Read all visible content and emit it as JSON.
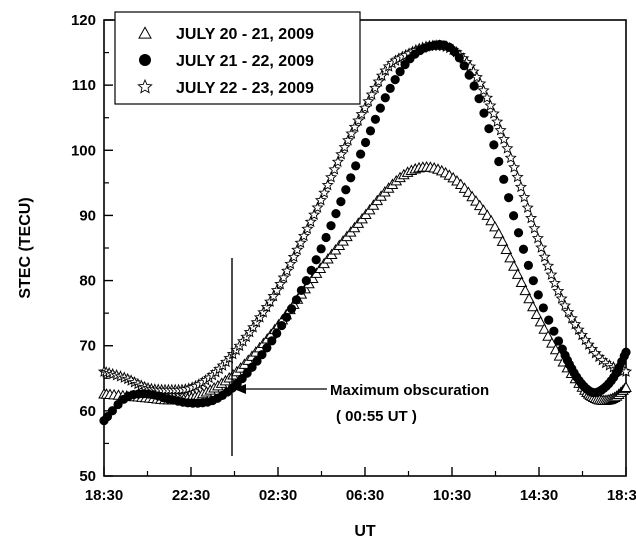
{
  "chart_data": {
    "type": "scatter",
    "xlabel": "UT",
    "ylabel": "STEC (TECU)",
    "xlim": [
      "18:30",
      "18:30"
    ],
    "ylim": [
      50,
      120
    ],
    "x_ticks": [
      "18:30",
      "22:30",
      "02:30",
      "06:30",
      "10:30",
      "14:30",
      "18:30"
    ],
    "y_ticks": [
      50,
      60,
      70,
      80,
      90,
      100,
      110,
      120
    ],
    "grid": false,
    "legend_position": "top-left",
    "series": [
      {
        "name": "JULY 20 - 21, 2009",
        "marker": "open-triangle",
        "x": [
          "18:30",
          "19:30",
          "20:30",
          "21:30",
          "22:30",
          "23:30",
          "00:30",
          "01:30",
          "02:30",
          "03:30",
          "04:30",
          "05:30",
          "06:30",
          "07:30",
          "08:30",
          "09:30",
          "10:30",
          "11:30",
          "12:30",
          "13:30",
          "14:30",
          "15:30",
          "16:30",
          "17:00",
          "17:30",
          "18:00",
          "18:30"
        ],
        "y": [
          62.5,
          62.2,
          61.9,
          61.6,
          61.9,
          63.3,
          65.6,
          69.0,
          73.0,
          77.5,
          82.0,
          86.0,
          89.9,
          93.8,
          96.6,
          97.3,
          95.8,
          92.5,
          88.0,
          81.0,
          74.0,
          68.0,
          63.5,
          62.0,
          61.5,
          62.0,
          63.5
        ]
      },
      {
        "name": "JULY 21 - 22, 2009",
        "marker": "filled-circle",
        "x": [
          "18:30",
          "19:30",
          "20:30",
          "21:30",
          "22:30",
          "23:30",
          "00:30",
          "01:30",
          "02:30",
          "03:30",
          "04:30",
          "05:30",
          "06:30",
          "07:30",
          "08:30",
          "09:30",
          "10:30",
          "11:30",
          "12:30",
          "13:30",
          "14:30",
          "15:30",
          "16:00",
          "16:30",
          "17:00",
          "17:30",
          "18:00",
          "18:30"
        ],
        "y": [
          58.5,
          62.0,
          62.6,
          61.8,
          61.2,
          61.6,
          63.8,
          67.5,
          72.2,
          78.0,
          85.0,
          93.0,
          101.0,
          108.5,
          113.8,
          116.0,
          115.5,
          110.0,
          100.0,
          88.0,
          77.5,
          70.0,
          66.5,
          64.0,
          62.8,
          63.5,
          65.5,
          69.0
        ]
      },
      {
        "name": "JULY 22 - 23, 2009",
        "marker": "open-star",
        "x": [
          "18:30",
          "19:30",
          "20:30",
          "21:30",
          "22:30",
          "23:30",
          "00:30",
          "01:30",
          "02:30",
          "03:30",
          "04:30",
          "05:30",
          "06:30",
          "07:30",
          "08:30",
          "09:30",
          "10:30",
          "11:30",
          "12:30",
          "13:30",
          "14:30",
          "15:30",
          "16:30",
          "17:30",
          "18:30"
        ],
        "y": [
          66.0,
          65.0,
          63.5,
          63.2,
          63.5,
          65.5,
          69.0,
          73.5,
          78.8,
          85.5,
          92.5,
          100.0,
          106.5,
          112.5,
          114.8,
          116.0,
          115.5,
          112.0,
          105.0,
          96.0,
          86.0,
          77.5,
          71.5,
          67.5,
          66.0
        ]
      }
    ],
    "annotations": [
      {
        "lines": [
          "Maximum obscuration",
          "( 00:55 UT )"
        ],
        "x": "00:55"
      }
    ]
  }
}
